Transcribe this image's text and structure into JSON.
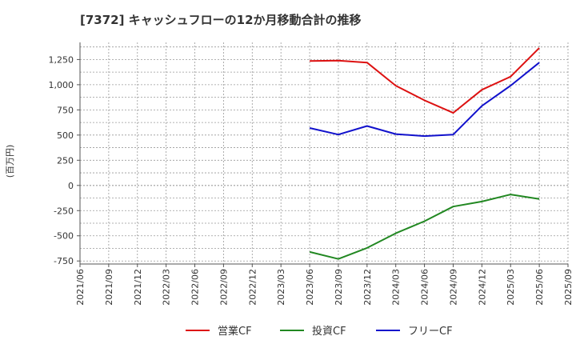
{
  "chart_data": {
    "type": "line",
    "title": "[7372]  キャッシュフローの12か月移動合計の推移",
    "ylabel": "(百万円)",
    "xlabel": "",
    "ylim": [
      -780,
      1420
    ],
    "yticks": [
      1250,
      1000,
      750,
      500,
      250,
      0,
      -250,
      -500,
      -750
    ],
    "ytick_labels": [
      "1,250",
      "1,000",
      "750",
      "500",
      "250",
      "0",
      "-250",
      "-500",
      "-750"
    ],
    "categories": [
      "2021/06",
      "2021/09",
      "2021/12",
      "2022/03",
      "2022/06",
      "2022/09",
      "2022/12",
      "2023/03",
      "2023/06",
      "2023/09",
      "2023/12",
      "2024/03",
      "2024/06",
      "2024/09",
      "2024/12",
      "2025/03",
      "2025/06",
      "2025/09"
    ],
    "grid": true,
    "legend_position": "bottom",
    "series": [
      {
        "name": "営業CF",
        "color": "#dd1111",
        "values": [
          null,
          null,
          null,
          null,
          null,
          null,
          null,
          null,
          1235,
          1240,
          1220,
          990,
          845,
          720,
          950,
          1080,
          1365,
          null
        ]
      },
      {
        "name": "投資CF",
        "color": "#228822",
        "values": [
          null,
          null,
          null,
          null,
          null,
          null,
          null,
          null,
          -660,
          -730,
          -620,
          -475,
          -355,
          -210,
          -160,
          -90,
          -135,
          null
        ]
      },
      {
        "name": "フリーCF",
        "color": "#1111cc",
        "values": [
          null,
          null,
          null,
          null,
          null,
          null,
          null,
          null,
          570,
          505,
          590,
          510,
          490,
          505,
          790,
          990,
          1220,
          null
        ]
      }
    ]
  }
}
